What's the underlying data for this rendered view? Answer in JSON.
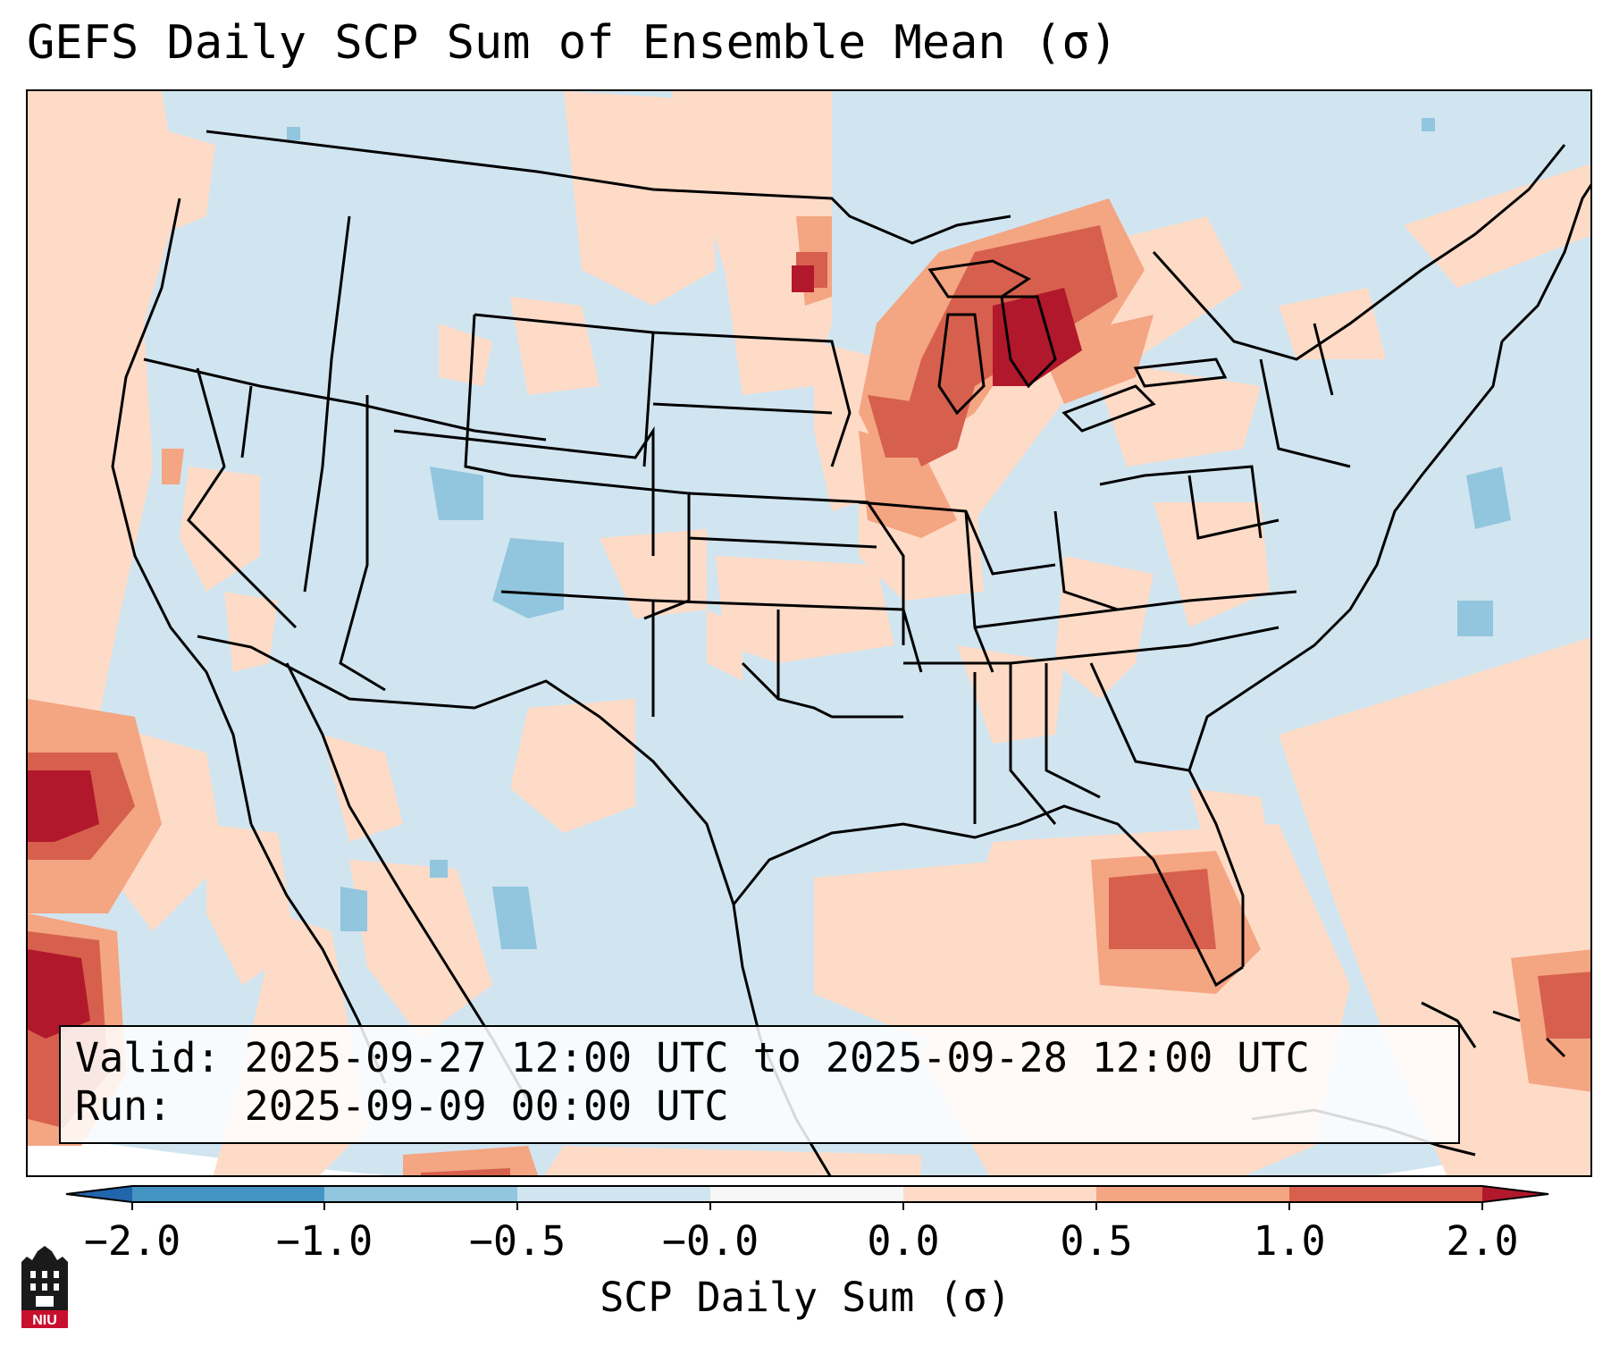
{
  "title": "GEFS Daily SCP Sum of Ensemble Mean (σ)",
  "map": {
    "projection": "Lambert Conformal, CONUS",
    "field": "SCP daily sum anomaly (σ)",
    "land_borders": "US states, Canada, Mexico, Caribbean"
  },
  "info": {
    "valid_line": "Valid: 2025-09-27 12:00 UTC to 2025-09-28 12:00 UTC",
    "run_line": "Run:   2025-09-09 00:00 UTC"
  },
  "colorbar": {
    "label": "SCP Daily Sum (σ)",
    "ticks": [
      "−2.0",
      "−1.0",
      "−0.5",
      "−0.0",
      "0.0",
      "0.5",
      "1.0",
      "2.0"
    ],
    "bins": [
      {
        "range": "< -2.0",
        "color": "#2166ac"
      },
      {
        "range": "-2.0 to -1.0",
        "color": "#4393c3"
      },
      {
        "range": "-1.0 to -0.5",
        "color": "#92c5de"
      },
      {
        "range": "-0.5 to -0.0",
        "color": "#d1e5f0"
      },
      {
        "range": "-0.0 to 0.0",
        "color": "#f7f7f7"
      },
      {
        "range": "0.0 to 0.5",
        "color": "#fddbc7"
      },
      {
        "range": "0.5 to 1.0",
        "color": "#f4a582"
      },
      {
        "range": "1.0 to 2.0",
        "color": "#d6604d"
      },
      {
        "range": "> 2.0",
        "color": "#b2182b"
      }
    ]
  },
  "logo": {
    "text": "NIU",
    "icon": "niu-castle-logo"
  }
}
